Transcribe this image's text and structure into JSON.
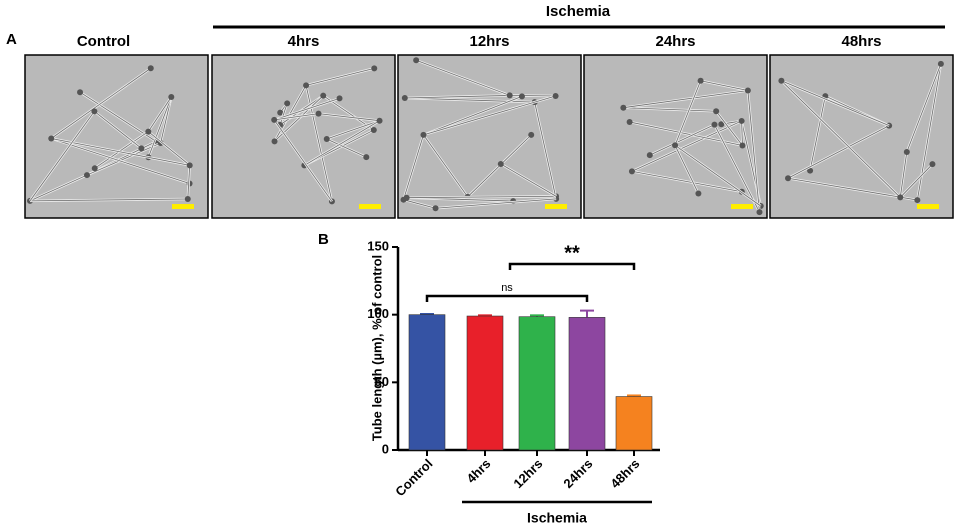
{
  "panel_a": {
    "label": "A",
    "group": "Ischemia",
    "columns": [
      "Control",
      "4hrs",
      "12hrs",
      "24hrs",
      "48hrs"
    ]
  },
  "chart_data": {
    "type": "bar",
    "label": "B",
    "y_label": "Tube length (µm), % of control",
    "categories": [
      "Control",
      "4hrs",
      "12hrs",
      "24hrs",
      "48hrs"
    ],
    "values": [
      100,
      99,
      98.5,
      98,
      39.5
    ],
    "errors": [
      0.5,
      0.5,
      1,
      5,
      0.8
    ],
    "colors": [
      "#3553a4",
      "#e8202a",
      "#2fb24b",
      "#8d46a0",
      "#f5821f"
    ],
    "ylim": [
      0,
      150
    ],
    "yticks": [
      0,
      50,
      100,
      150
    ],
    "annotations": [
      "ns",
      "**"
    ],
    "group_label": "Ischemia"
  }
}
